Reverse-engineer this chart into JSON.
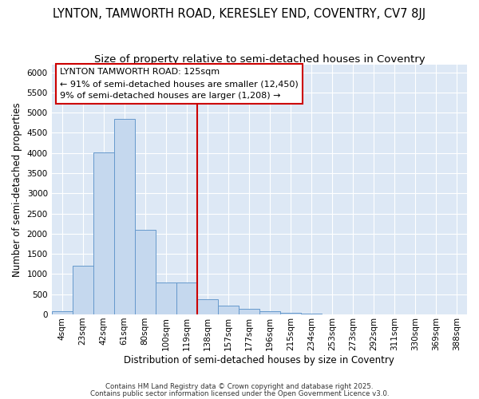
{
  "title": "LYNTON, TAMWORTH ROAD, KERESLEY END, COVENTRY, CV7 8JJ",
  "subtitle": "Size of property relative to semi-detached houses in Coventry",
  "xlabel": "Distribution of semi-detached houses by size in Coventry",
  "ylabel": "Number of semi-detached properties",
  "footer1": "Contains HM Land Registry data © Crown copyright and database right 2025.",
  "footer2": "Contains public sector information licensed under the Open Government Licence v3.0.",
  "categories": [
    "4sqm",
    "23sqm",
    "42sqm",
    "61sqm",
    "80sqm",
    "100sqm",
    "119sqm",
    "138sqm",
    "157sqm",
    "177sqm",
    "196sqm",
    "215sqm",
    "234sqm",
    "253sqm",
    "273sqm",
    "292sqm",
    "311sqm",
    "330sqm",
    "369sqm",
    "388sqm"
  ],
  "values": [
    75,
    1200,
    4020,
    4850,
    2100,
    800,
    800,
    380,
    220,
    130,
    80,
    40,
    15,
    8,
    4,
    2,
    1,
    1,
    0,
    0
  ],
  "bar_color": "#c5d8ee",
  "bar_edge_color": "#6699cc",
  "vline_x": 6.5,
  "vline_color": "#cc0000",
  "annotation_text": "LYNTON TAMWORTH ROAD: 125sqm\n← 91% of semi-detached houses are smaller (12,450)\n9% of semi-detached houses are larger (1,208) →",
  "annotation_box_color": "#cc0000",
  "ylim": [
    0,
    6200
  ],
  "yticks": [
    0,
    500,
    1000,
    1500,
    2000,
    2500,
    3000,
    3500,
    4000,
    4500,
    5000,
    5500,
    6000
  ],
  "plot_bg_color": "#dde8f5",
  "fig_bg_color": "#ffffff",
  "grid_color": "#ffffff",
  "title_fontsize": 10.5,
  "subtitle_fontsize": 9.5,
  "annotation_fontsize": 8,
  "tick_fontsize": 7.5,
  "label_fontsize": 8.5
}
